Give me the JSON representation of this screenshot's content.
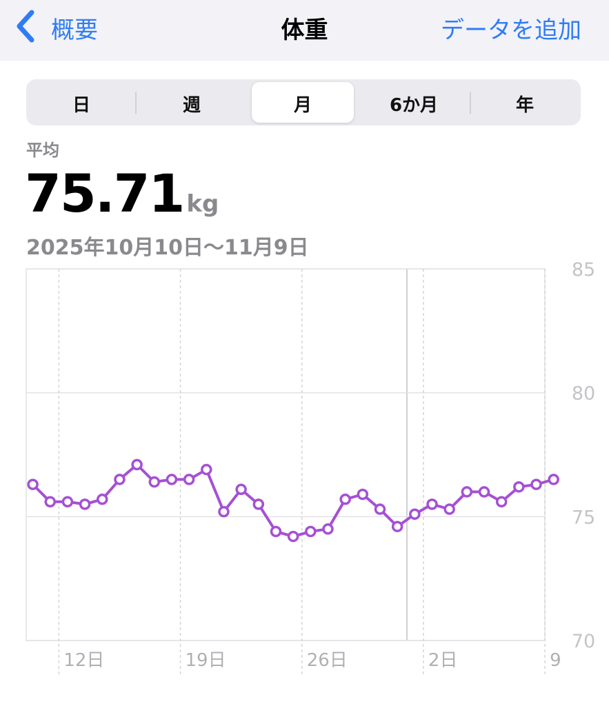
{
  "nav": {
    "back": "概要",
    "title": "体重",
    "action": "データを追加"
  },
  "segments": [
    "日",
    "週",
    "月",
    "6か月",
    "年"
  ],
  "summary": {
    "label": "平均",
    "value": "75.71",
    "unit": "kg",
    "range": "2025年10月10日〜11月9日"
  },
  "chart_data": {
    "type": "line",
    "categories": [
      null,
      null,
      "12日",
      null,
      null,
      null,
      null,
      null,
      null,
      "19日",
      null,
      null,
      null,
      null,
      null,
      null,
      "26日",
      null,
      null,
      null,
      null,
      null,
      null,
      "2日",
      null,
      null,
      null,
      null,
      null,
      null,
      "9"
    ],
    "values": [
      76.3,
      75.6,
      75.6,
      75.5,
      75.7,
      76.5,
      77.1,
      76.4,
      76.5,
      76.5,
      76.9,
      75.2,
      76.1,
      75.5,
      74.4,
      74.2,
      74.4,
      74.5,
      75.7,
      75.9,
      75.3,
      74.6,
      75.1,
      75.5,
      75.3,
      76.0,
      76.0,
      75.6,
      76.2,
      76.3,
      76.5
    ],
    "color": "#a550d4",
    "ylim": [
      70,
      85
    ],
    "yticks": [
      70,
      75,
      80,
      85
    ],
    "grid": true
  }
}
